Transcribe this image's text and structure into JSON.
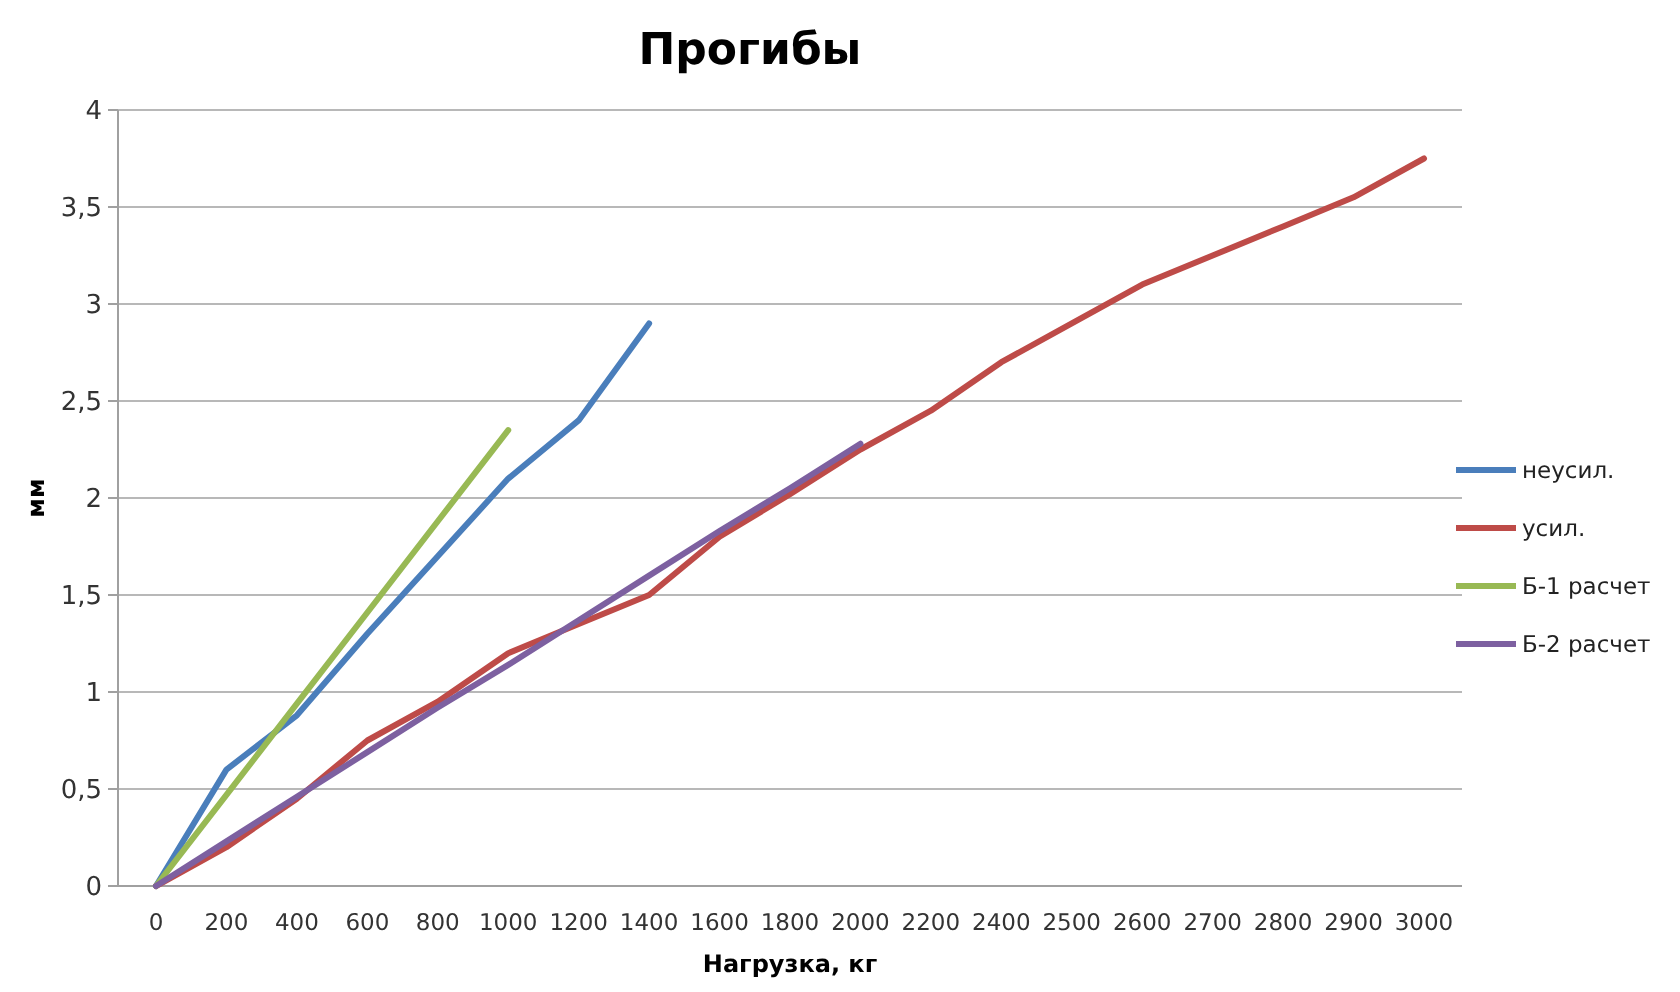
{
  "chart_data": {
    "type": "line",
    "title": "Прогибы",
    "xlabel": "Нагрузка, кг",
    "ylabel": "мм",
    "categories": [
      "0",
      "200",
      "400",
      "600",
      "800",
      "1000",
      "1200",
      "1400",
      "1600",
      "1800",
      "2000",
      "2200",
      "2400",
      "2500",
      "2600",
      "2700",
      "2800",
      "2900",
      "3000"
    ],
    "ylim": [
      0,
      4
    ],
    "yticks": [
      0,
      {
        "value": 0.5,
        "label": "0,5"
      },
      1,
      {
        "value": 1.5,
        "label": "1,5"
      },
      2,
      {
        "value": 2.5,
        "label": "2,5"
      },
      3,
      {
        "value": 3.5,
        "label": "3,5"
      },
      4
    ],
    "grid": "y",
    "legend": "right",
    "marker": "none",
    "series": [
      {
        "name": "неусил.",
        "color": "#4a7ebb",
        "values": [
          0,
          0.6,
          0.88,
          1.3,
          1.7,
          2.1,
          2.4,
          2.9,
          null,
          null,
          null,
          null,
          null,
          null,
          null,
          null,
          null,
          null,
          null
        ]
      },
      {
        "name": "усил.",
        "color": "#be4b48",
        "values": [
          0,
          0.2,
          0.45,
          0.75,
          0.95,
          1.2,
          1.35,
          1.5,
          1.8,
          2.02,
          2.25,
          2.45,
          2.7,
          2.9,
          3.1,
          3.25,
          3.4,
          3.55,
          3.75
        ]
      },
      {
        "name": "Б-1 расчет",
        "color": "#98b954",
        "values": [
          0,
          0.47,
          0.94,
          1.41,
          1.88,
          2.35,
          null,
          null,
          null,
          null,
          null,
          null,
          null,
          null,
          null,
          null,
          null,
          null,
          null
        ]
      },
      {
        "name": "Б-2 расчет",
        "color": "#7d60a0",
        "values": [
          0,
          0.23,
          0.46,
          0.69,
          0.92,
          1.14,
          1.37,
          1.6,
          1.83,
          2.05,
          2.28,
          null,
          null,
          null,
          null,
          null,
          null,
          null,
          null
        ]
      }
    ]
  }
}
